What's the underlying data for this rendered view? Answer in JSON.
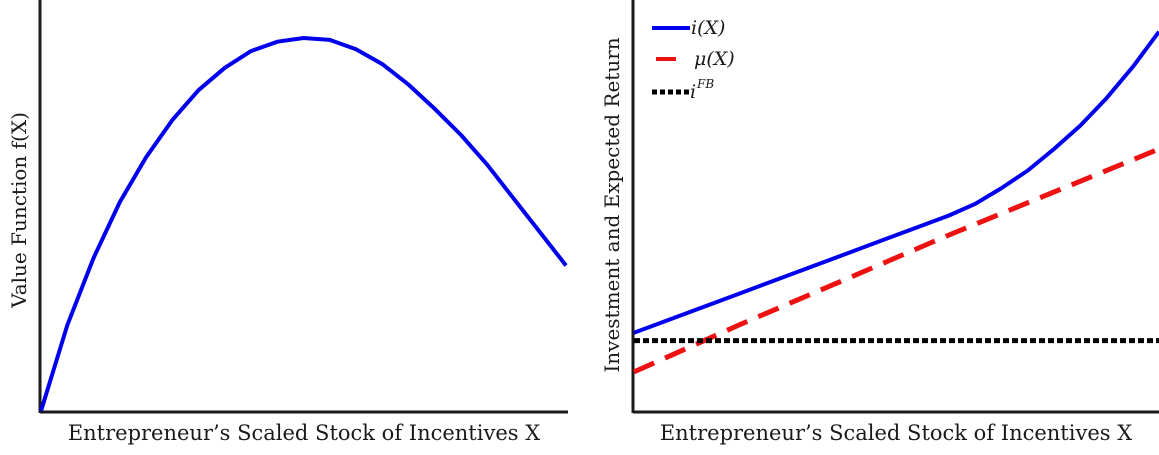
{
  "chart_data": [
    {
      "type": "line",
      "xlabel": "Entrepreneur’s Scaled Stock of Incentives X",
      "ylabel": "Value Function f(X)",
      "ticks": "none",
      "grid": false,
      "xlim": [
        0,
        1
      ],
      "ylim": [
        0,
        1
      ],
      "series": [
        {
          "name": "",
          "color": "#0000ee",
          "style": "solid",
          "x": [
            0,
            0.05,
            0.1,
            0.15,
            0.2,
            0.25,
            0.3,
            0.35,
            0.4,
            0.45,
            0.5,
            0.55,
            0.6,
            0.65,
            0.7,
            0.75,
            0.8,
            0.85,
            0.9,
            0.95,
            1.0
          ],
          "y": [
            0.0,
            0.23,
            0.41,
            0.56,
            0.68,
            0.78,
            0.86,
            0.92,
            0.965,
            0.99,
            1.0,
            0.995,
            0.97,
            0.93,
            0.875,
            0.81,
            0.74,
            0.66,
            0.57,
            0.48,
            0.39
          ]
        }
      ]
    },
    {
      "type": "line",
      "xlabel": "Entrepreneur’s Scaled Stock of Incentives X",
      "ylabel": "Investment and Expected Return",
      "ticks": "none",
      "grid": false,
      "legend_position": "top-left",
      "xlim": [
        0,
        1
      ],
      "ylim": [
        0,
        1
      ],
      "series": [
        {
          "name": "i(X)",
          "color": "#0000ee",
          "style": "solid",
          "x": [
            0,
            0.1,
            0.2,
            0.3,
            0.4,
            0.5,
            0.55,
            0.6,
            0.65,
            0.7,
            0.75,
            0.8,
            0.85,
            0.9,
            0.95,
            1.0
          ],
          "y": [
            0.2,
            0.25,
            0.3,
            0.35,
            0.4,
            0.45,
            0.475,
            0.5,
            0.53,
            0.57,
            0.615,
            0.67,
            0.73,
            0.8,
            0.88,
            0.97
          ]
        },
        {
          "name": "μ(X)",
          "color": "#ee1111",
          "style": "dashed",
          "x": [
            0,
            0.2,
            0.4,
            0.6,
            0.8,
            1.0
          ],
          "y": [
            0.1,
            0.22,
            0.335,
            0.45,
            0.56,
            0.67
          ]
        },
        {
          "name": "i^FB",
          "color": "#000000",
          "style": "dotted",
          "x": [
            0,
            1.0
          ],
          "y": [
            0.18,
            0.18
          ]
        }
      ]
    }
  ],
  "legend": {
    "i_base": "i(X)",
    "mu_base": "μ(X)",
    "ifb_base": "i",
    "ifb_sup": "FB"
  }
}
